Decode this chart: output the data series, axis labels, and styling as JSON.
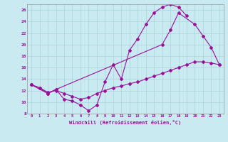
{
  "xlabel": "Windchill (Refroidissement éolien,°C)",
  "xlim": [
    -0.5,
    23.5
  ],
  "ylim": [
    8,
    27
  ],
  "xticks": [
    0,
    1,
    2,
    3,
    4,
    5,
    6,
    7,
    8,
    9,
    10,
    11,
    12,
    13,
    14,
    15,
    16,
    17,
    18,
    19,
    20,
    21,
    22,
    23
  ],
  "yticks": [
    8,
    10,
    12,
    14,
    16,
    18,
    20,
    22,
    24,
    26
  ],
  "bg_color": "#c8eaf0",
  "line_color": "#991199",
  "grid_color": "#aad4de",
  "curve1_x": [
    0,
    1,
    2,
    3,
    4,
    5,
    6,
    7,
    8,
    9,
    10,
    11,
    12,
    13,
    14,
    15,
    16,
    17,
    18,
    19
  ],
  "curve1_y": [
    13.0,
    12.5,
    11.5,
    12.2,
    10.5,
    10.2,
    9.5,
    8.5,
    9.5,
    13.5,
    16.5,
    14.0,
    19.0,
    21.0,
    23.5,
    25.5,
    26.5,
    27.0,
    26.5,
    25.0
  ],
  "curve2_x": [
    0,
    2,
    3,
    16,
    17,
    18,
    20,
    21,
    22,
    23
  ],
  "curve2_y": [
    13.0,
    11.5,
    12.2,
    20.0,
    22.5,
    25.5,
    23.5,
    21.5,
    19.5,
    16.5
  ],
  "curve3_x": [
    0,
    1,
    2,
    3,
    4,
    5,
    6,
    7,
    8,
    9,
    10,
    11,
    12,
    13,
    14,
    15,
    16,
    17,
    18,
    19,
    20,
    21,
    22,
    23
  ],
  "curve3_y": [
    13.0,
    12.5,
    11.7,
    12.0,
    11.5,
    11.0,
    10.5,
    10.8,
    11.5,
    12.0,
    12.5,
    12.8,
    13.2,
    13.5,
    14.0,
    14.5,
    15.0,
    15.5,
    16.0,
    16.5,
    17.0,
    17.0,
    16.8,
    16.5
  ]
}
